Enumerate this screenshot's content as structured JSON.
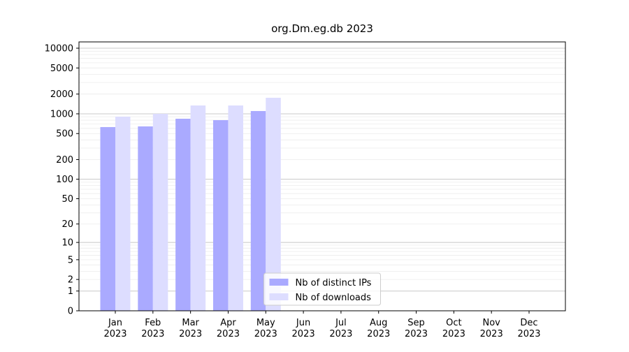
{
  "chart_data": {
    "type": "bar",
    "title": "org.Dm.eg.db 2023",
    "categories": [
      {
        "month": "Jan",
        "year": "2023"
      },
      {
        "month": "Feb",
        "year": "2023"
      },
      {
        "month": "Mar",
        "year": "2023"
      },
      {
        "month": "Apr",
        "year": "2023"
      },
      {
        "month": "May",
        "year": "2023"
      },
      {
        "month": "Jun",
        "year": "2023"
      },
      {
        "month": "Jul",
        "year": "2023"
      },
      {
        "month": "Aug",
        "year": "2023"
      },
      {
        "month": "Sep",
        "year": "2023"
      },
      {
        "month": "Oct",
        "year": "2023"
      },
      {
        "month": "Nov",
        "year": "2023"
      },
      {
        "month": "Dec",
        "year": "2023"
      }
    ],
    "series": [
      {
        "name": "Nb of distinct IPs",
        "color": "#aaaaff",
        "values": [
          628,
          643,
          842,
          801,
          1103,
          null,
          null,
          null,
          null,
          null,
          null,
          null
        ]
      },
      {
        "name": "Nb of downloads",
        "color": "#ddddff",
        "values": [
          906,
          1000,
          1341,
          1341,
          1757,
          null,
          null,
          null,
          null,
          null,
          null,
          null
        ]
      }
    ],
    "yscale": "log1p",
    "ylim": [
      0,
      12470
    ],
    "yticks": [
      0,
      1,
      2,
      5,
      10,
      20,
      50,
      100,
      200,
      500,
      1000,
      2000,
      5000,
      10000
    ],
    "grid": true,
    "legend": "lower center"
  }
}
